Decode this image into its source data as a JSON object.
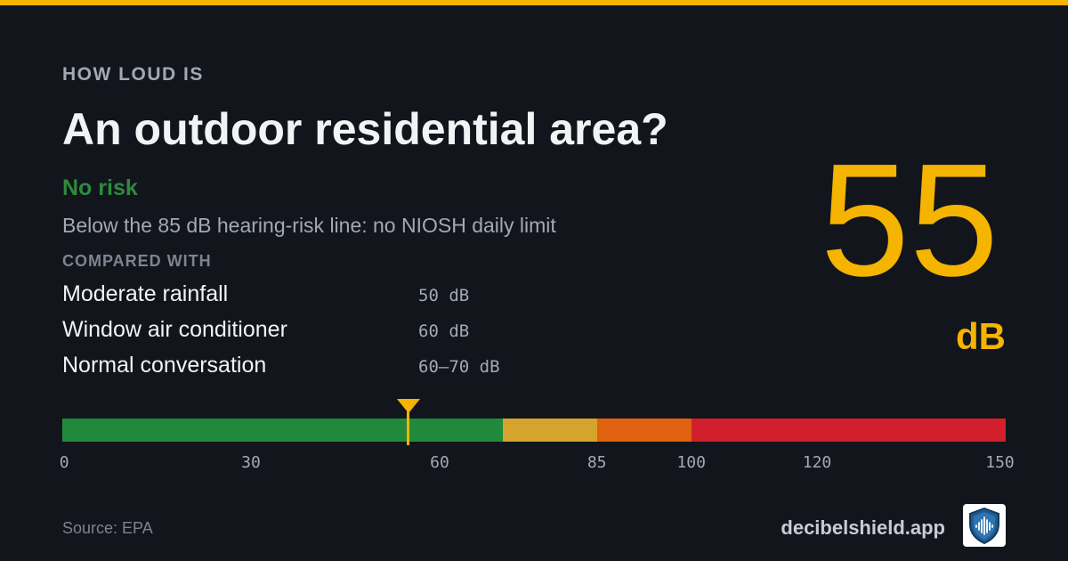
{
  "header": {
    "kicker": "HOW LOUD IS",
    "title": "An outdoor residential area?"
  },
  "risk": {
    "label": "No risk",
    "label_color": "#2e8a3e",
    "description": "Below the 85 dB hearing-risk line: no NIOSH daily limit"
  },
  "comparisons": {
    "heading": "COMPARED WITH",
    "items": [
      {
        "name": "Moderate rainfall",
        "value": "50 dB"
      },
      {
        "name": "Window air conditioner",
        "value": "60 dB"
      },
      {
        "name": "Normal conversation",
        "value": "60–70 dB"
      }
    ]
  },
  "reading": {
    "value": "55",
    "value_number": 55,
    "unit": "dB",
    "accent_color": "#f5b400"
  },
  "gauge": {
    "min": 0,
    "max": 150,
    "marker_value": 55,
    "segments": [
      {
        "from": 0,
        "to": 70,
        "color": "#218a3a"
      },
      {
        "from": 70,
        "to": 85,
        "color": "#d4a42c"
      },
      {
        "from": 85,
        "to": 100,
        "color": "#e0610f"
      },
      {
        "from": 100,
        "to": 150,
        "color": "#d1202c"
      }
    ],
    "ticks": [
      "0",
      "30",
      "60",
      "85",
      "100",
      "120",
      "150"
    ]
  },
  "footer": {
    "source": "Source: EPA",
    "brand": "decibelshield.app",
    "logo_icon": "shield-soundwave-icon"
  }
}
